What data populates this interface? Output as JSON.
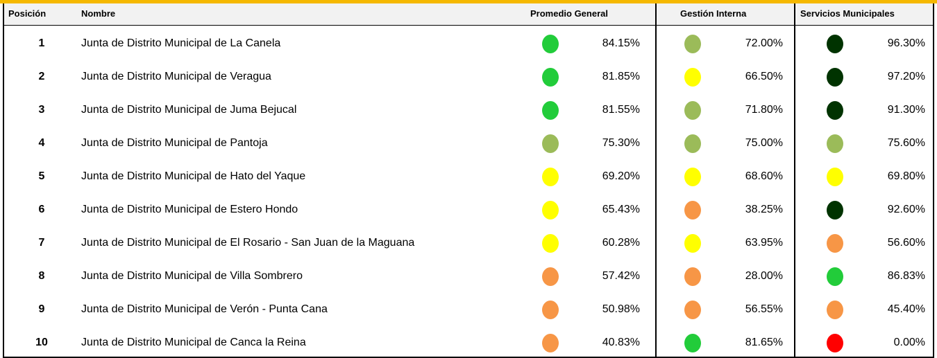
{
  "table": {
    "headers": [
      "Posición",
      "Nombre",
      "Promedio General",
      "Gestión Interna",
      "Servicios Municipales"
    ],
    "rows": [
      [
        "1",
        "Junta de Distrito Municipal de La Canela",
        {
          "text": "84.15%",
          "color": "#22cc3a"
        },
        {
          "text": "72.00%",
          "color": "#9bbb59"
        },
        {
          "text": "96.30%",
          "color": "#003300"
        }
      ],
      [
        "2",
        "Junta de Distrito Municipal de Veragua",
        {
          "text": "81.85%",
          "color": "#22cc3a"
        },
        {
          "text": "66.50%",
          "color": "#ffff00"
        },
        {
          "text": "97.20%",
          "color": "#003300"
        }
      ],
      [
        "3",
        "Junta de Distrito Municipal de Juma Bejucal",
        {
          "text": "81.55%",
          "color": "#22cc3a"
        },
        {
          "text": "71.80%",
          "color": "#9bbb59"
        },
        {
          "text": "91.30%",
          "color": "#003300"
        }
      ],
      [
        "4",
        "Junta de Distrito Municipal de Pantoja",
        {
          "text": "75.30%",
          "color": "#9bbb59"
        },
        {
          "text": "75.00%",
          "color": "#9bbb59"
        },
        {
          "text": "75.60%",
          "color": "#9bbb59"
        }
      ],
      [
        "5",
        "Junta de Distrito Municipal de Hato del Yaque",
        {
          "text": "69.20%",
          "color": "#ffff00"
        },
        {
          "text": "68.60%",
          "color": "#ffff00"
        },
        {
          "text": "69.80%",
          "color": "#ffff00"
        }
      ],
      [
        "6",
        "Junta de Distrito Municipal de Estero Hondo",
        {
          "text": "65.43%",
          "color": "#ffff00"
        },
        {
          "text": "38.25%",
          "color": "#f79646"
        },
        {
          "text": "92.60%",
          "color": "#003300"
        }
      ],
      [
        "7",
        "Junta de Distrito Municipal de El Rosario - San Juan de la Maguana",
        {
          "text": "60.28%",
          "color": "#ffff00"
        },
        {
          "text": "63.95%",
          "color": "#ffff00"
        },
        {
          "text": "56.60%",
          "color": "#f79646"
        }
      ],
      [
        "8",
        "Junta de Distrito Municipal de Villa Sombrero",
        {
          "text": "57.42%",
          "color": "#f79646"
        },
        {
          "text": "28.00%",
          "color": "#f79646"
        },
        {
          "text": "86.83%",
          "color": "#22cc3a"
        }
      ],
      [
        "9",
        "Junta de Distrito Municipal de Verón - Punta Cana",
        {
          "text": "50.98%",
          "color": "#f79646"
        },
        {
          "text": "56.55%",
          "color": "#f79646"
        },
        {
          "text": "45.40%",
          "color": "#f79646"
        }
      ],
      [
        "10",
        "Junta de Distrito Municipal de Canca la Reina",
        {
          "text": "40.83%",
          "color": "#f79646"
        },
        {
          "text": "81.65%",
          "color": "#22cc3a"
        },
        {
          "text": "0.00%",
          "color": "#ff0000"
        }
      ]
    ]
  }
}
